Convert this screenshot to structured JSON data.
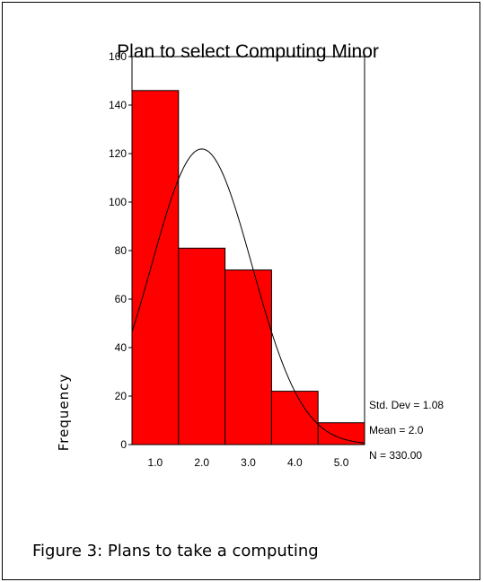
{
  "chart_data": {
    "type": "bar",
    "title": "Plan to select Computing Minor",
    "ylabel": "Frequency",
    "xlabel": "",
    "categories": [
      "1.0",
      "2.0",
      "3.0",
      "4.0",
      "5.0"
    ],
    "values": [
      146,
      81,
      72,
      22,
      9
    ],
    "bar_color": "#ff0000",
    "x_ticks": [
      "1.0",
      "2.0",
      "3.0",
      "4.0",
      "5.0"
    ],
    "y_ticks": [
      "0",
      "20",
      "40",
      "60",
      "80",
      "100",
      "120",
      "140",
      "160"
    ],
    "xlim": [
      0.5,
      5.5
    ],
    "ylim": [
      0,
      160
    ],
    "grid": false,
    "normal_curve": {
      "mean": 2.0,
      "std_dev": 1.08,
      "n": 330
    },
    "stats": {
      "std_dev_label": "Std. Dev = 1.08",
      "mean_label": "Mean = 2.0",
      "n_label": "N = 330.00"
    }
  },
  "caption": "Figure 3: Plans to take a computing"
}
